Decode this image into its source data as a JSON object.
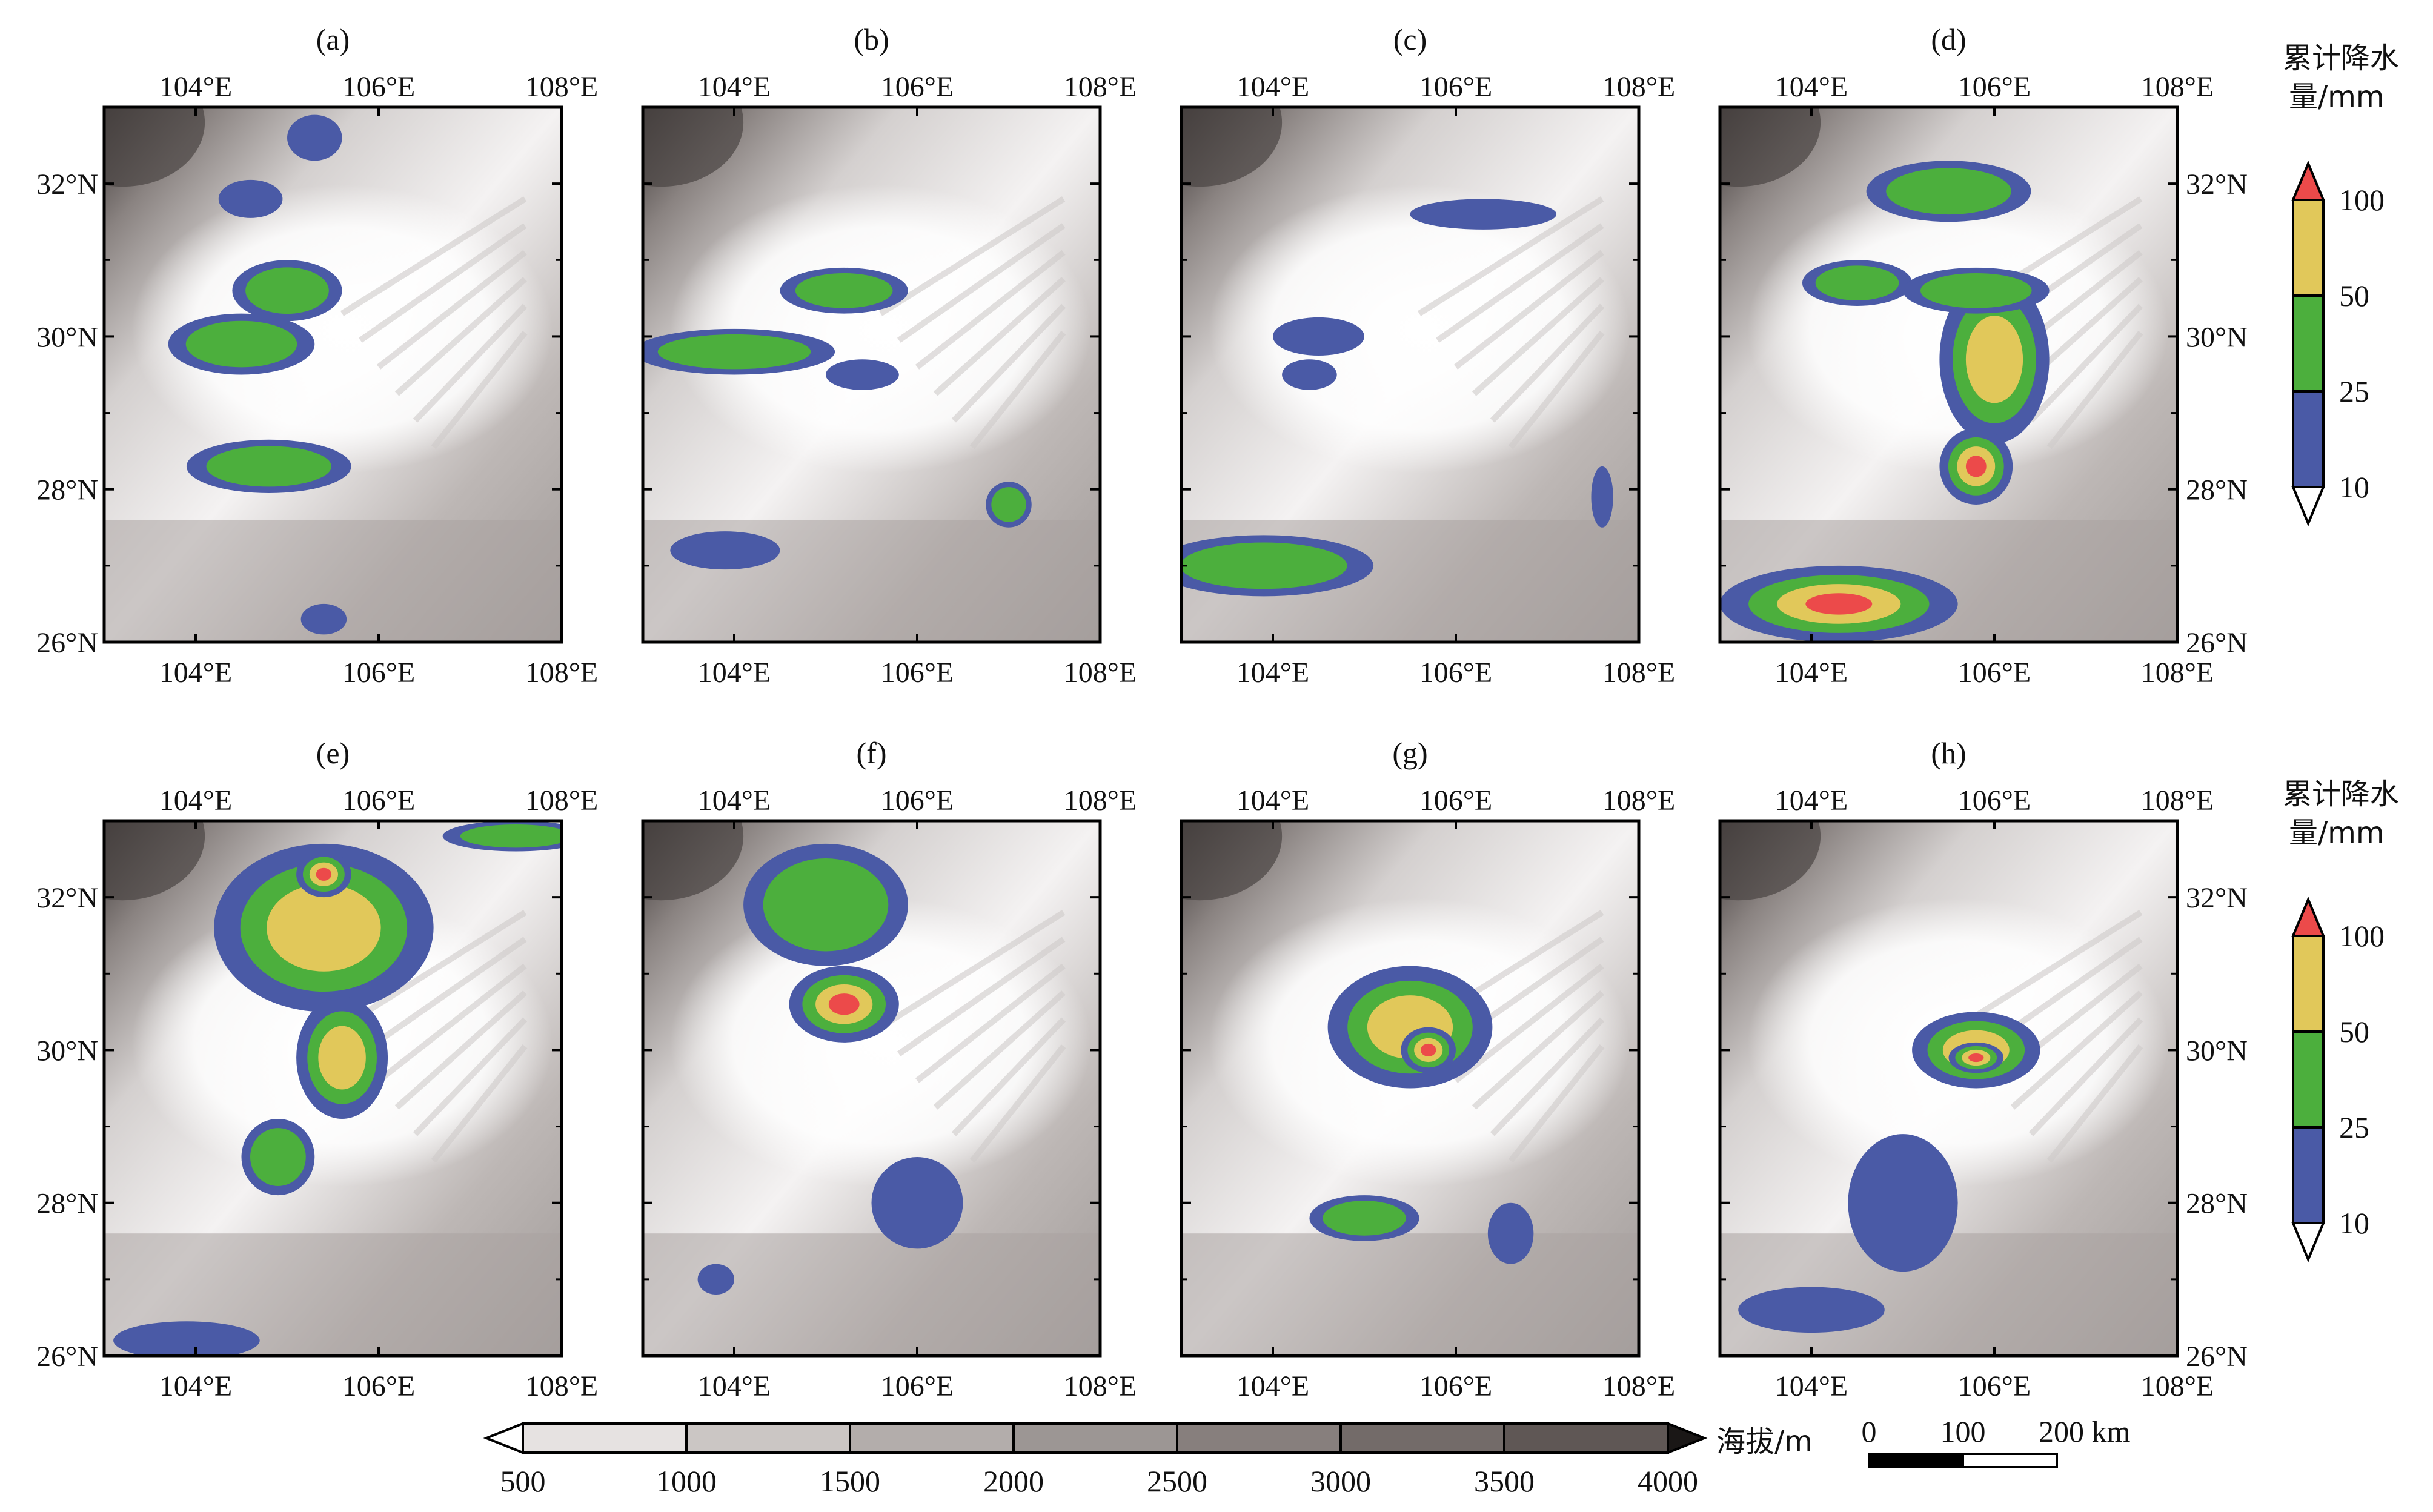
{
  "panels": [
    {
      "label": "(a)",
      "blobs": [
        {
          "cx": 104.5,
          "cy": 29.9,
          "rx": 0.8,
          "ry": 0.4,
          "level": 2
        },
        {
          "cx": 105.0,
          "cy": 30.6,
          "rx": 0.6,
          "ry": 0.4,
          "level": 2
        },
        {
          "cx": 104.8,
          "cy": 28.3,
          "rx": 0.9,
          "ry": 0.35,
          "level": 2
        },
        {
          "cx": 105.3,
          "cy": 32.6,
          "rx": 0.3,
          "ry": 0.3,
          "level": 1
        },
        {
          "cx": 104.6,
          "cy": 31.8,
          "rx": 0.35,
          "ry": 0.25,
          "level": 1
        },
        {
          "cx": 105.4,
          "cy": 26.3,
          "rx": 0.25,
          "ry": 0.2,
          "level": 1
        }
      ]
    },
    {
      "label": "(b)",
      "blobs": [
        {
          "cx": 104.0,
          "cy": 29.8,
          "rx": 1.1,
          "ry": 0.3,
          "level": 2
        },
        {
          "cx": 105.2,
          "cy": 30.6,
          "rx": 0.7,
          "ry": 0.3,
          "level": 2
        },
        {
          "cx": 107.0,
          "cy": 27.8,
          "rx": 0.25,
          "ry": 0.3,
          "level": 2
        },
        {
          "cx": 103.9,
          "cy": 27.2,
          "rx": 0.6,
          "ry": 0.25,
          "level": 1
        },
        {
          "cx": 105.4,
          "cy": 29.5,
          "rx": 0.4,
          "ry": 0.2,
          "level": 1
        }
      ]
    },
    {
      "label": "(c)",
      "blobs": [
        {
          "cx": 103.9,
          "cy": 27.0,
          "rx": 1.2,
          "ry": 0.4,
          "level": 2
        },
        {
          "cx": 104.5,
          "cy": 30.0,
          "rx": 0.5,
          "ry": 0.25,
          "level": 1
        },
        {
          "cx": 106.3,
          "cy": 31.6,
          "rx": 0.8,
          "ry": 0.2,
          "level": 1
        },
        {
          "cx": 107.6,
          "cy": 27.9,
          "rx": 0.12,
          "ry": 0.4,
          "level": 1
        },
        {
          "cx": 104.4,
          "cy": 29.5,
          "rx": 0.3,
          "ry": 0.2,
          "level": 1
        }
      ]
    },
    {
      "label": "(d)",
      "blobs": [
        {
          "cx": 105.5,
          "cy": 31.9,
          "rx": 0.9,
          "ry": 0.4,
          "level": 2
        },
        {
          "cx": 104.5,
          "cy": 30.7,
          "rx": 0.6,
          "ry": 0.3,
          "level": 2
        },
        {
          "cx": 106.0,
          "cy": 29.7,
          "rx": 0.6,
          "ry": 1.1,
          "level": 3
        },
        {
          "cx": 105.8,
          "cy": 28.3,
          "rx": 0.4,
          "ry": 0.5,
          "level": 4
        },
        {
          "cx": 104.3,
          "cy": 26.5,
          "rx": 1.3,
          "ry": 0.5,
          "level": 4
        },
        {
          "cx": 105.8,
          "cy": 30.6,
          "rx": 0.8,
          "ry": 0.3,
          "level": 2
        }
      ]
    },
    {
      "label": "(e)",
      "blobs": [
        {
          "cx": 105.4,
          "cy": 31.6,
          "rx": 1.2,
          "ry": 1.1,
          "level": 3
        },
        {
          "cx": 105.4,
          "cy": 32.3,
          "rx": 0.3,
          "ry": 0.3,
          "level": 4
        },
        {
          "cx": 105.6,
          "cy": 29.9,
          "rx": 0.5,
          "ry": 0.8,
          "level": 3
        },
        {
          "cx": 104.9,
          "cy": 28.6,
          "rx": 0.4,
          "ry": 0.5,
          "level": 2
        },
        {
          "cx": 107.5,
          "cy": 32.8,
          "rx": 0.8,
          "ry": 0.2,
          "level": 2
        },
        {
          "cx": 103.9,
          "cy": 26.2,
          "rx": 0.8,
          "ry": 0.25,
          "level": 1
        }
      ]
    },
    {
      "label": "(f)",
      "blobs": [
        {
          "cx": 105.0,
          "cy": 31.9,
          "rx": 0.9,
          "ry": 0.8,
          "level": 2
        },
        {
          "cx": 105.2,
          "cy": 30.6,
          "rx": 0.6,
          "ry": 0.5,
          "level": 4
        },
        {
          "cx": 106.0,
          "cy": 28.0,
          "rx": 0.5,
          "ry": 0.6,
          "level": 1
        },
        {
          "cx": 103.8,
          "cy": 27.0,
          "rx": 0.2,
          "ry": 0.2,
          "level": 1
        }
      ]
    },
    {
      "label": "(g)",
      "blobs": [
        {
          "cx": 105.5,
          "cy": 30.3,
          "rx": 0.9,
          "ry": 0.8,
          "level": 3
        },
        {
          "cx": 105.7,
          "cy": 30.0,
          "rx": 0.3,
          "ry": 0.3,
          "level": 4
        },
        {
          "cx": 105.0,
          "cy": 27.8,
          "rx": 0.6,
          "ry": 0.3,
          "level": 2
        },
        {
          "cx": 106.6,
          "cy": 27.6,
          "rx": 0.25,
          "ry": 0.4,
          "level": 1
        }
      ]
    },
    {
      "label": "(h)",
      "blobs": [
        {
          "cx": 105.8,
          "cy": 30.0,
          "rx": 0.7,
          "ry": 0.5,
          "level": 3
        },
        {
          "cx": 105.8,
          "cy": 29.9,
          "rx": 0.3,
          "ry": 0.2,
          "level": 4
        },
        {
          "cx": 105.0,
          "cy": 28.0,
          "rx": 0.6,
          "ry": 0.9,
          "level": 1
        },
        {
          "cx": 104.0,
          "cy": 26.6,
          "rx": 0.8,
          "ry": 0.3,
          "level": 1
        }
      ]
    }
  ],
  "axis_labels": {
    "lon_ticks": [
      "104°E",
      "106°E",
      "108°E"
    ],
    "lat_ticks": [
      "26°N",
      "28°N",
      "30°N",
      "32°N"
    ]
  },
  "precip_colorbar": {
    "title_line1": "累计降水",
    "title_line2": "量/mm",
    "ticks": [
      "10",
      "25",
      "50",
      "100"
    ],
    "colors": [
      "#4a5aa6",
      "#4caf3d",
      "#e1c85a",
      "#ec4a4a"
    ],
    "lower_color": "#ffffff"
  },
  "elev_colorbar": {
    "label": "海拔/m",
    "ticks": [
      "500",
      "1000",
      "1500",
      "2000",
      "2500",
      "3000",
      "3500",
      "4000"
    ],
    "colors": [
      "#e6e2e1",
      "#cbc6c4",
      "#b3adab",
      "#9c9694",
      "#877f7d",
      "#736b69",
      "#5f5755",
      "#3b3433",
      "#1a1716"
    ]
  },
  "scalebar": {
    "labels": [
      "0",
      "100",
      "200 km"
    ]
  },
  "map_extent": {
    "lon": [
      103,
      108
    ],
    "lat": [
      26,
      33
    ]
  },
  "colors": {
    "lowland": "#ffffff",
    "relief_light": "#d9d5d4",
    "relief_mid": "#b0aaa8",
    "relief_dark": "#4a4443",
    "frame": "#000000"
  }
}
